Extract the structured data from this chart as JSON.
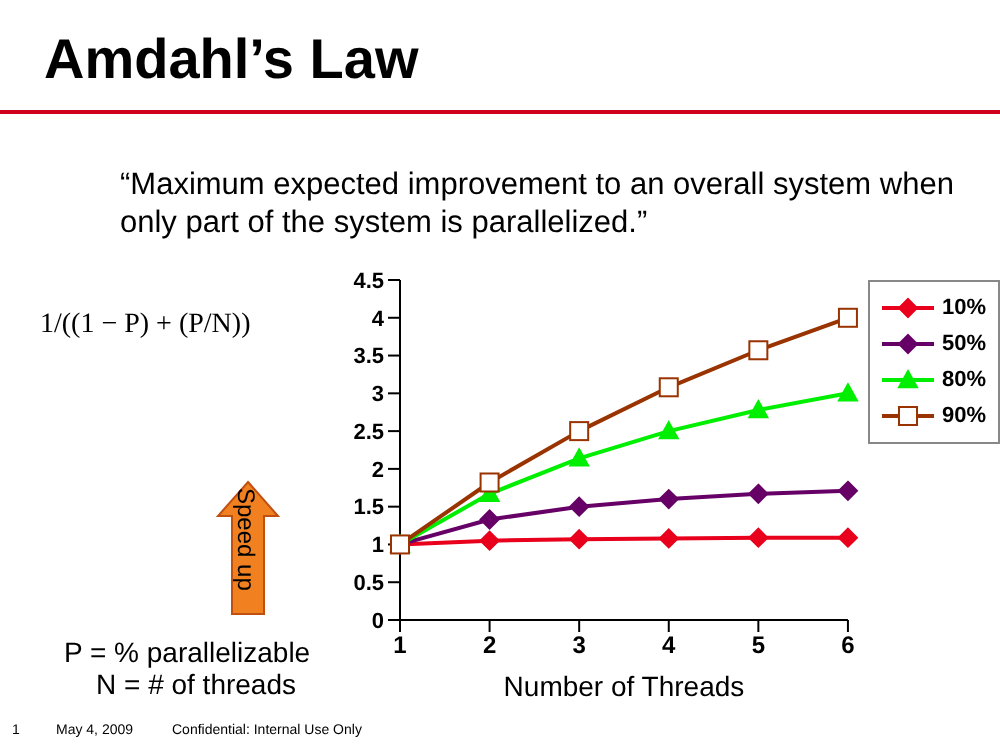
{
  "chart_data": {
    "type": "line",
    "title": "Amdahl’s Law",
    "subtitle": "“Maximum expected improvement to an overall system when only part of the system is parallelized.”",
    "xlabel": "Number of Threads",
    "categories": [
      "1",
      "2",
      "3",
      "4",
      "5",
      "6"
    ],
    "series": [
      {
        "name": "10%",
        "color": "#e8001c",
        "marker": "diamond",
        "values": [
          1,
          1.05,
          1.07,
          1.08,
          1.09,
          1.09
        ]
      },
      {
        "name": "50%",
        "color": "#660066",
        "marker": "diamond",
        "values": [
          1,
          1.33,
          1.5,
          1.6,
          1.67,
          1.71
        ]
      },
      {
        "name": "80%",
        "color": "#00ee00",
        "marker": "triangle",
        "values": [
          1,
          1.67,
          2.14,
          2.5,
          2.78,
          3
        ]
      },
      {
        "name": "90%",
        "color": "#993300",
        "marker": "square",
        "values": [
          1,
          1.82,
          2.5,
          3.08,
          3.57,
          4
        ]
      }
    ],
    "ylim": [
      0,
      4.5
    ],
    "yticks": [
      0,
      0.5,
      1,
      1.5,
      2,
      2.5,
      3,
      3.5,
      4,
      4.5
    ],
    "grid": false,
    "legend": "top right",
    "line_style": "solid",
    "annotations": [
      "1/((1 − P) + (P/N))",
      "Speed up",
      "P = % parallelizable",
      "N = # of threads",
      "1",
      "May 4, 2009",
      "Confidential: Internal Use Only"
    ]
  }
}
